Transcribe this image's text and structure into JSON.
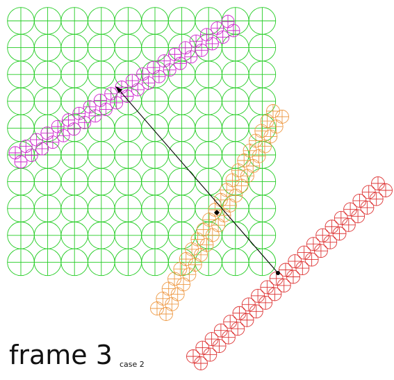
{
  "caption": {
    "frame": "frame 3",
    "case": "case 2"
  },
  "colors": {
    "grid": "#22cc22",
    "magenta": "#cc22cc",
    "orange": "#ee9944",
    "red": "#dd3333",
    "arrow": "#000000"
  },
  "diagram": {
    "grid_rows": 10,
    "grid_cols": 10,
    "bands": [
      {
        "name": "magenta-band",
        "color_key": "magenta",
        "rows": 2,
        "count": 21
      },
      {
        "name": "orange-band",
        "color_key": "orange",
        "rows": 2,
        "count": 21
      },
      {
        "name": "red-band",
        "color_key": "red",
        "rows": 2,
        "count": 21
      }
    ]
  }
}
